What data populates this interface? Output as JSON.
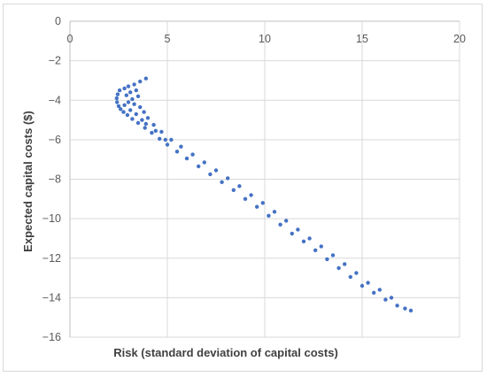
{
  "chart_data": {
    "type": "scatter",
    "title": "",
    "xlabel": "Risk (standard deviation of capital costs)",
    "ylabel": "Expected capital costs ($)",
    "xlim": [
      0,
      20
    ],
    "ylim": [
      -16,
      0
    ],
    "x_ticks": [
      "0",
      "5",
      "10",
      "15",
      "20"
    ],
    "y_ticks": [
      "0",
      "−2",
      "−4",
      "−6",
      "−8",
      "−10",
      "−12",
      "−14",
      "−16"
    ],
    "x_axis_position": "top",
    "grid": true,
    "color": "#4472c4",
    "series": [
      {
        "values": [
          [
            2.55,
            -3.5
          ],
          [
            2.45,
            -3.7
          ],
          [
            2.4,
            -3.9
          ],
          [
            2.42,
            -4.1
          ],
          [
            2.5,
            -4.3
          ],
          [
            2.6,
            -4.45
          ],
          [
            2.75,
            -4.6
          ],
          [
            2.95,
            -4.75
          ],
          [
            3.2,
            -4.95
          ],
          [
            3.5,
            -5.15
          ],
          [
            3.85,
            -5.4
          ],
          [
            4.2,
            -5.65
          ],
          [
            4.6,
            -5.95
          ],
          [
            5.0,
            -6.25
          ],
          [
            5.5,
            -6.6
          ],
          [
            6.0,
            -6.95
          ],
          [
            6.6,
            -7.35
          ],
          [
            7.2,
            -7.75
          ],
          [
            7.8,
            -8.15
          ],
          [
            8.4,
            -8.55
          ],
          [
            9.0,
            -9.0
          ],
          [
            9.6,
            -9.4
          ],
          [
            10.2,
            -9.85
          ],
          [
            10.8,
            -10.3
          ],
          [
            11.4,
            -10.75
          ],
          [
            12.0,
            -11.15
          ],
          [
            12.6,
            -11.6
          ],
          [
            13.2,
            -12.05
          ],
          [
            13.8,
            -12.5
          ],
          [
            14.4,
            -12.95
          ],
          [
            15.0,
            -13.4
          ],
          [
            15.6,
            -13.75
          ],
          [
            16.2,
            -14.1
          ],
          [
            16.8,
            -14.4
          ],
          [
            17.2,
            -14.55
          ],
          [
            17.5,
            -14.65
          ],
          [
            3.9,
            -2.9
          ],
          [
            3.6,
            -3.05
          ],
          [
            3.3,
            -3.2
          ],
          [
            3.0,
            -3.3
          ],
          [
            2.8,
            -3.4
          ],
          [
            3.4,
            -3.5
          ],
          [
            3.1,
            -3.6
          ],
          [
            2.9,
            -3.75
          ],
          [
            3.5,
            -3.8
          ],
          [
            3.2,
            -3.95
          ],
          [
            3.0,
            -4.1
          ],
          [
            3.3,
            -4.2
          ],
          [
            3.6,
            -4.35
          ],
          [
            2.8,
            -4.25
          ],
          [
            3.1,
            -4.5
          ],
          [
            3.8,
            -4.6
          ],
          [
            3.4,
            -4.7
          ],
          [
            4.0,
            -4.9
          ],
          [
            3.7,
            -5.0
          ],
          [
            4.3,
            -5.25
          ],
          [
            3.9,
            -5.2
          ],
          [
            4.7,
            -5.6
          ],
          [
            4.4,
            -5.55
          ],
          [
            5.2,
            -6.0
          ],
          [
            4.9,
            -6.0
          ],
          [
            5.7,
            -6.35
          ],
          [
            6.3,
            -6.75
          ],
          [
            6.9,
            -7.15
          ],
          [
            7.5,
            -7.55
          ],
          [
            8.1,
            -7.95
          ],
          [
            8.7,
            -8.35
          ],
          [
            9.3,
            -8.8
          ],
          [
            9.9,
            -9.2
          ],
          [
            10.5,
            -9.65
          ],
          [
            11.1,
            -10.1
          ],
          [
            11.7,
            -10.55
          ],
          [
            12.3,
            -11.0
          ],
          [
            12.9,
            -11.4
          ],
          [
            13.5,
            -11.85
          ],
          [
            14.1,
            -12.3
          ],
          [
            14.7,
            -12.75
          ],
          [
            15.3,
            -13.25
          ],
          [
            15.9,
            -13.6
          ],
          [
            16.5,
            -14.0
          ]
        ]
      }
    ]
  }
}
